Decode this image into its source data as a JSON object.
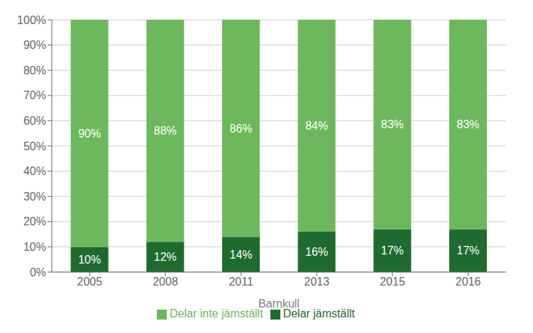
{
  "chart_data": {
    "type": "bar",
    "stacked": true,
    "xlabel": "Barnkull",
    "categories": [
      "2005",
      "2008",
      "2011",
      "2013",
      "2015",
      "2016"
    ],
    "series": [
      {
        "name": "Delar jämställt",
        "color": "#1E6B30",
        "values": [
          10,
          12,
          14,
          16,
          17,
          17
        ],
        "value_labels": [
          "10%",
          "12%",
          "14%",
          "16%",
          "17%",
          "17%"
        ]
      },
      {
        "name": "Delar inte jämställt",
        "color": "#6DB85C",
        "values": [
          90,
          88,
          86,
          84,
          83,
          83
        ],
        "value_labels": [
          "90%",
          "88%",
          "86%",
          "84%",
          "83%",
          "83%"
        ]
      }
    ],
    "ylim": [
      0,
      100
    ],
    "yticks": [
      {
        "value": 0,
        "label": "0%"
      },
      {
        "value": 10,
        "label": "10%"
      },
      {
        "value": 20,
        "label": "20%"
      },
      {
        "value": 30,
        "label": "30%"
      },
      {
        "value": 40,
        "label": "40%"
      },
      {
        "value": 50,
        "label": "50%"
      },
      {
        "value": 60,
        "label": "60%"
      },
      {
        "value": 70,
        "label": "70%"
      },
      {
        "value": 80,
        "label": "80%"
      },
      {
        "value": 90,
        "label": "90%"
      },
      {
        "value": 100,
        "label": "100%"
      }
    ],
    "grid": true,
    "data_labels": true,
    "legend": "bottom"
  }
}
